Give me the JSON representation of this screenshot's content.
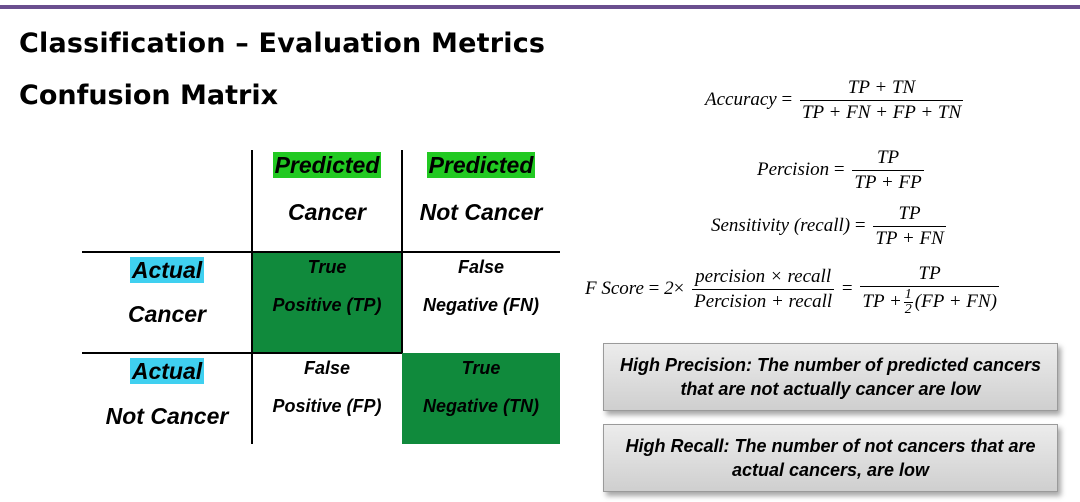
{
  "header": {
    "title": "Classification – Evaluation Metrics",
    "subtitle": "Confusion Matrix"
  },
  "matrix": {
    "col_headers": [
      {
        "highlight": "Predicted",
        "label": "Cancer"
      },
      {
        "highlight": "Predicted",
        "label": "Not Cancer"
      }
    ],
    "row_headers": [
      {
        "highlight": "Actual",
        "label": "Cancer"
      },
      {
        "highlight": "Actual",
        "label": "Not Cancer"
      }
    ],
    "cells": [
      {
        "line1": "True",
        "line2": "Positive (TP)"
      },
      {
        "line1": "False",
        "line2": "Negative (FN)"
      },
      {
        "line1": "False",
        "line2": "Positive (FP)"
      },
      {
        "line1": "True",
        "line2": "Negative (TN)"
      }
    ],
    "colors": {
      "green_highlight": "#22c922",
      "cyan_highlight": "#3fd0f0",
      "dark_green_cell": "#108a3c"
    }
  },
  "formulas": {
    "accuracy": {
      "lhs": "Accuracy",
      "num": "TP + TN",
      "den": "TP + FN + FP + TN"
    },
    "precision": {
      "lhs": "Percision",
      "num": "TP",
      "den": "TP + FP"
    },
    "sensitivity": {
      "lhs": "Sensitivity (recall)",
      "num": "TP",
      "den": "TP + FN"
    },
    "fscore": {
      "lhs": "F Score",
      "factor": "2",
      "num1": "percision  × recall",
      "den1": "Percision + recall",
      "num2": "TP",
      "den2_prefix": "TP +",
      "half_num": "1",
      "half_den": "2",
      "den2_suffix": "(FP + FN)"
    }
  },
  "notes": {
    "precision_line1": "High Precision: The number of predicted cancers",
    "precision_line2": "that are not actually cancer are low",
    "recall_line1": "High Recall: The number of not cancers that are",
    "recall_line2": "actual cancers, are low"
  }
}
